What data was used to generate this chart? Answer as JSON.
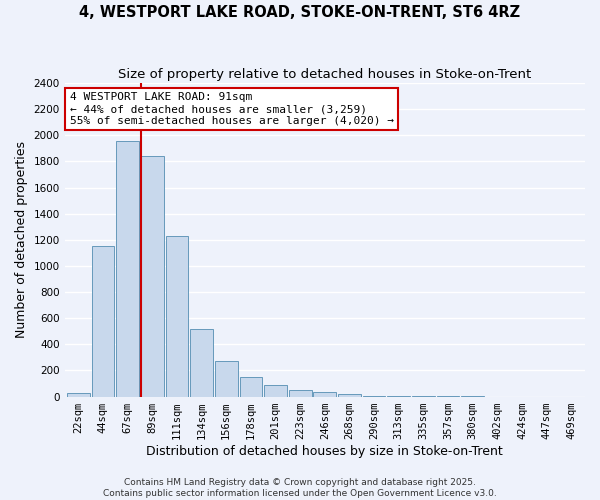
{
  "title": "4, WESTPORT LAKE ROAD, STOKE-ON-TRENT, ST6 4RZ",
  "subtitle": "Size of property relative to detached houses in Stoke-on-Trent",
  "xlabel": "Distribution of detached houses by size in Stoke-on-Trent",
  "ylabel": "Number of detached properties",
  "bar_labels": [
    "22sqm",
    "44sqm",
    "67sqm",
    "89sqm",
    "111sqm",
    "134sqm",
    "156sqm",
    "178sqm",
    "201sqm",
    "223sqm",
    "246sqm",
    "268sqm",
    "290sqm",
    "313sqm",
    "335sqm",
    "357sqm",
    "380sqm",
    "402sqm",
    "424sqm",
    "447sqm",
    "469sqm"
  ],
  "bar_values": [
    30,
    1150,
    1960,
    1840,
    1230,
    515,
    270,
    148,
    85,
    48,
    35,
    18,
    8,
    3,
    2,
    1,
    1,
    0,
    0,
    0,
    0
  ],
  "bar_color": "#c8d8ec",
  "bar_edge_color": "#6699bb",
  "ylim": [
    0,
    2400
  ],
  "yticks": [
    0,
    200,
    400,
    600,
    800,
    1000,
    1200,
    1400,
    1600,
    1800,
    2000,
    2200,
    2400
  ],
  "vline_bar_index": 3,
  "vline_color": "#cc0000",
  "annotation_line1": "4 WESTPORT LAKE ROAD: 91sqm",
  "annotation_line2": "← 44% of detached houses are smaller (3,259)",
  "annotation_line3": "55% of semi-detached houses are larger (4,020) →",
  "annotation_box_color": "#ffffff",
  "annotation_box_edge_color": "#cc0000",
  "footer1": "Contains HM Land Registry data © Crown copyright and database right 2025.",
  "footer2": "Contains public sector information licensed under the Open Government Licence v3.0.",
  "background_color": "#eef2fb",
  "grid_color": "#ffffff",
  "title_fontsize": 10.5,
  "subtitle_fontsize": 9.5,
  "ylabel_fontsize": 9,
  "xlabel_fontsize": 9,
  "tick_fontsize": 7.5,
  "annotation_fontsize": 8,
  "footer_fontsize": 6.5
}
